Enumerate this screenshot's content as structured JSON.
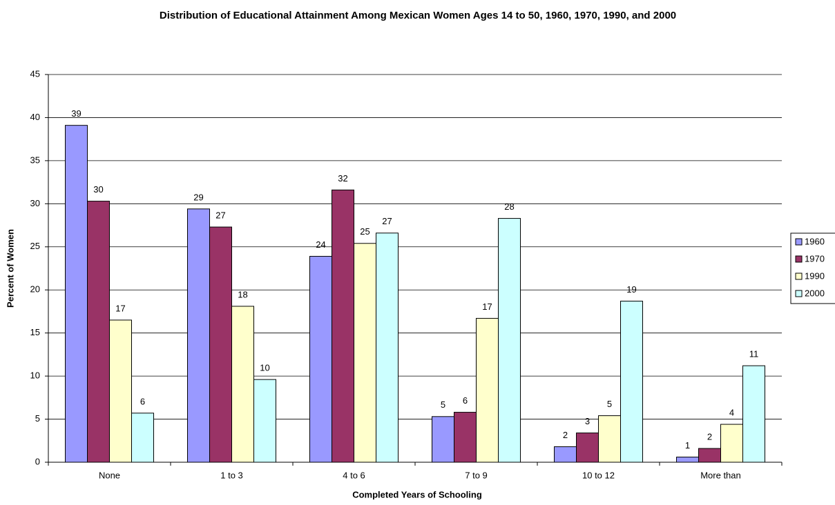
{
  "chart_data": {
    "type": "bar",
    "title": "Distribution of Educational Attainment Among Mexican Women Ages 14 to 50, 1960, 1970, 1990, and 2000",
    "x_label": "Completed Years of Schooling",
    "y_label": "Percent of Women",
    "categories": [
      "None",
      "1 to 3",
      "4 to 6",
      "7 to 9",
      "10 to 12",
      "More than"
    ],
    "series": [
      {
        "name": "1960",
        "color": "#9999ff",
        "values": [
          39.1,
          29.4,
          23.9,
          5.3,
          1.8,
          0.6
        ],
        "value_labels": [
          "39",
          "29",
          "24",
          "5",
          "2",
          "1"
        ]
      },
      {
        "name": "1970",
        "color": "#993366",
        "values": [
          30.3,
          27.3,
          31.6,
          5.8,
          3.4,
          1.6
        ],
        "value_labels": [
          "30",
          "27",
          "32",
          "6",
          "3",
          "2"
        ]
      },
      {
        "name": "1990",
        "color": "#ffffcc",
        "values": [
          16.5,
          18.1,
          25.4,
          16.7,
          5.4,
          4.4
        ],
        "value_labels": [
          "17",
          "18",
          "25",
          "17",
          "5",
          "4"
        ]
      },
      {
        "name": "2000",
        "color": "#ccffff",
        "values": [
          5.7,
          9.6,
          26.6,
          28.3,
          18.7,
          11.2
        ],
        "value_labels": [
          "6",
          "10",
          "27",
          "28",
          "19",
          "11"
        ]
      }
    ],
    "ylim": [
      0,
      45
    ],
    "yticks": [
      0,
      5,
      10,
      15,
      20,
      25,
      30,
      35,
      40,
      45
    ],
    "grid": true,
    "legend": "right"
  }
}
